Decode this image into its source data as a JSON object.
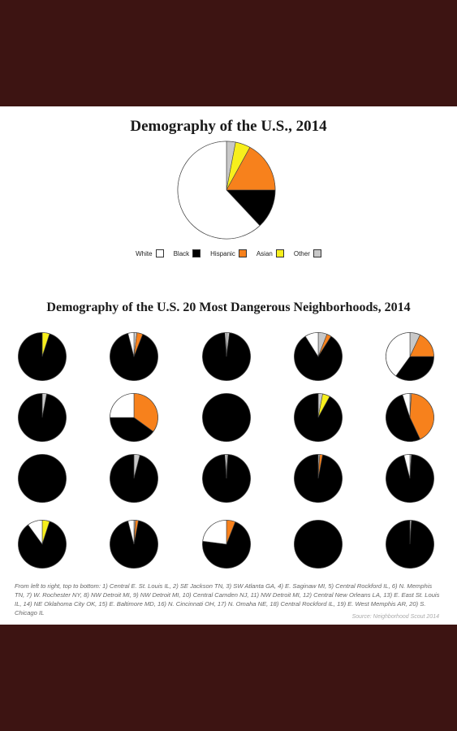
{
  "chart_data": [
    {
      "type": "pie",
      "title": "Demography of the U.S., 2014",
      "categories": [
        "White",
        "Black",
        "Hispanic",
        "Asian",
        "Other"
      ],
      "values": [
        62,
        13,
        17,
        5,
        3
      ],
      "colors": [
        "#ffffff",
        "#000000",
        "#f7811c",
        "#f7ef1c",
        "#c8c8c8"
      ],
      "legend": "bottom"
    },
    {
      "type": "pie",
      "title": "Demography of the U.S. 20 Most Dangerous Neighborhoods, 2014",
      "categories": [
        "White",
        "Black",
        "Hispanic",
        "Asian",
        "Other"
      ],
      "colors": [
        "#ffffff",
        "#000000",
        "#f7811c",
        "#f7ef1c",
        "#c8c8c8"
      ],
      "pies": [
        {
          "values": [
            0,
            95,
            0,
            5,
            0
          ]
        },
        {
          "values": [
            4,
            90,
            4,
            0,
            2
          ]
        },
        {
          "values": [
            1,
            97,
            0,
            0,
            2
          ]
        },
        {
          "values": [
            9,
            82,
            3,
            0,
            6
          ]
        },
        {
          "values": [
            40,
            35,
            18,
            0,
            7
          ]
        },
        {
          "values": [
            0,
            97,
            0,
            0,
            3
          ]
        },
        {
          "values": [
            25,
            40,
            35,
            0,
            0
          ]
        },
        {
          "values": [
            0,
            100,
            0,
            0,
            0
          ]
        },
        {
          "values": [
            0,
            92,
            0,
            5,
            3
          ]
        },
        {
          "values": [
            5,
            52,
            42,
            0,
            1
          ]
        },
        {
          "values": [
            0,
            100,
            0,
            0,
            0
          ]
        },
        {
          "values": [
            0,
            96,
            0,
            0,
            4
          ]
        },
        {
          "values": [
            1,
            98,
            0,
            0,
            1
          ]
        },
        {
          "values": [
            0,
            97,
            2,
            0,
            1
          ]
        },
        {
          "values": [
            4,
            95,
            0,
            0,
            1
          ]
        },
        {
          "values": [
            10,
            85,
            0,
            5,
            0
          ]
        },
        {
          "values": [
            4,
            93,
            2,
            0,
            1
          ]
        },
        {
          "values": [
            23,
            71,
            6,
            0,
            0
          ]
        },
        {
          "values": [
            0,
            100,
            0,
            0,
            0
          ]
        },
        {
          "values": [
            0,
            99,
            0,
            0,
            1
          ]
        }
      ]
    }
  ],
  "footnote": "From left to right, top to bottom: 1) Central E. St. Louis IL, 2) SE Jackson TN, 3) SW Atlanta GA, 4) E. Saginaw MI, 5) Central Rockford IL, 6) N. Memphis TN, 7) W. Rochester NY, 8) NW Detroit MI, 9) NW Detroit MI, 10) Central Camden NJ, 11) NW Detroit MI, 12) Central New Orleans LA, 13) E. East St. Louis IL, 14) NE Oklahoma City OK, 15) E. Baltimore MD, 16) N. Cincinnati OH, 17) N. Omaha NE, 18) Central Rockford IL, 19) E. West Memphis AR, 20) S. Chicago IL",
  "source": "Source: Neighborhood Scout 2014"
}
